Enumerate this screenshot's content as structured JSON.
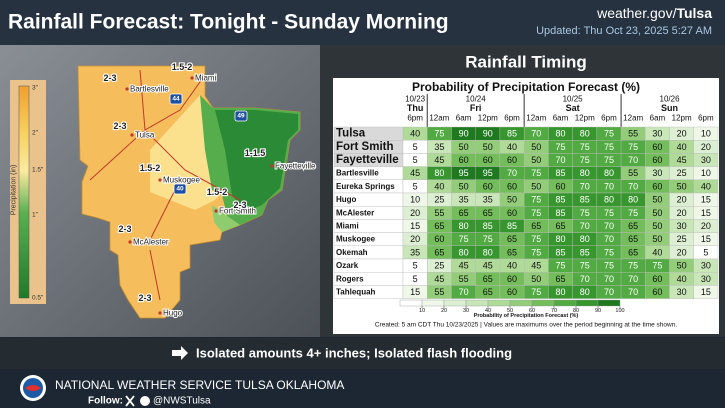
{
  "header": {
    "title": "Rainfall Forecast: Tonight - Sunday Morning",
    "site": "weather.gov/",
    "site_office": "Tulsa",
    "updated": "Updated: Thu Oct 23, 2025 5:27 AM"
  },
  "map": {
    "legend_title": "Precipitation (in)",
    "legend_labels": [
      "3\"",
      "2\"",
      "1.5\"",
      "1\"",
      "0.5\""
    ],
    "amounts": [
      "2-3",
      "1.5-2",
      "2-3",
      "1-1.5",
      "1.5-2",
      "1.5-2",
      "2-3",
      "2-3",
      "2-3"
    ],
    "cities": [
      "Bartlesville",
      "Miami",
      "Tulsa",
      "Muskogee",
      "Fayetteville",
      "Fort Smith",
      "McAlester",
      "Hugo"
    ],
    "highways": [
      "44",
      "49",
      "40"
    ]
  },
  "timing": {
    "title": "Rainfall Timing",
    "table": {
      "title": "Probability of Precipitation Forecast (%)",
      "days": [
        {
          "date": "10/23",
          "day": "Thu",
          "times": [
            "6pm"
          ]
        },
        {
          "date": "10/24",
          "day": "Fri",
          "times": [
            "12am",
            "6am",
            "12pm",
            "6pm"
          ]
        },
        {
          "date": "10/25",
          "day": "Sat",
          "times": [
            "12am",
            "6am",
            "12pm",
            "6pm"
          ]
        },
        {
          "date": "10/26",
          "day": "Sun",
          "times": [
            "12am",
            "6am",
            "12pm",
            "6pm"
          ]
        }
      ],
      "rows": [
        {
          "name": "Tulsa",
          "values": [
            40,
            75,
            90,
            90,
            85,
            70,
            80,
            80,
            75,
            55,
            30,
            20,
            10
          ]
        },
        {
          "name": "Fort Smith",
          "values": [
            5,
            35,
            50,
            50,
            40,
            50,
            75,
            75,
            75,
            75,
            60,
            40,
            20
          ]
        },
        {
          "name": "Fayetteville",
          "values": [
            5,
            45,
            60,
            60,
            60,
            50,
            70,
            75,
            75,
            70,
            60,
            45,
            30
          ]
        },
        {
          "name": "Bartlesville",
          "values": [
            45,
            80,
            95,
            95,
            70,
            75,
            85,
            80,
            80,
            55,
            30,
            25,
            10
          ]
        },
        {
          "name": "Eureka Springs",
          "values": [
            5,
            40,
            50,
            60,
            60,
            50,
            60,
            70,
            70,
            70,
            60,
            50,
            40
          ]
        },
        {
          "name": "Hugo",
          "values": [
            10,
            25,
            35,
            35,
            50,
            75,
            85,
            85,
            80,
            80,
            50,
            20,
            15
          ]
        },
        {
          "name": "McAlester",
          "values": [
            20,
            55,
            65,
            65,
            60,
            75,
            85,
            75,
            75,
            75,
            50,
            20,
            15
          ]
        },
        {
          "name": "Miami",
          "values": [
            15,
            65,
            80,
            85,
            85,
            65,
            65,
            70,
            70,
            65,
            50,
            30,
            20
          ]
        },
        {
          "name": "Muskogee",
          "values": [
            20,
            60,
            75,
            75,
            65,
            75,
            80,
            80,
            70,
            65,
            50,
            25,
            15
          ]
        },
        {
          "name": "Okemah",
          "values": [
            35,
            65,
            80,
            80,
            65,
            75,
            85,
            85,
            75,
            65,
            40,
            20,
            5
          ]
        },
        {
          "name": "Ozark",
          "values": [
            5,
            25,
            45,
            45,
            40,
            45,
            75,
            75,
            75,
            75,
            75,
            50,
            30
          ]
        },
        {
          "name": "Rogers",
          "values": [
            5,
            45,
            55,
            65,
            60,
            50,
            65,
            70,
            70,
            70,
            60,
            40,
            30
          ]
        },
        {
          "name": "Tahlequah",
          "values": [
            15,
            55,
            70,
            65,
            60,
            75,
            80,
            80,
            70,
            70,
            60,
            30,
            15
          ]
        }
      ],
      "scale_ticks": [
        10,
        20,
        30,
        40,
        50,
        60,
        70,
        80,
        90,
        100
      ],
      "scale_title": "Probability of Precipitation Forecast (%)",
      "note": "Created: 5 am CDT Thu 10/23/2025  |  Values are maximums over the period beginning at the time shown."
    }
  },
  "message": "Isolated amounts 4+ inches; Isolated flash flooding",
  "footer": {
    "office": "NATIONAL WEATHER SERVICE TULSA OKLAHOMA",
    "follow": "Follow:",
    "handle": "@NWSTulsa"
  }
}
